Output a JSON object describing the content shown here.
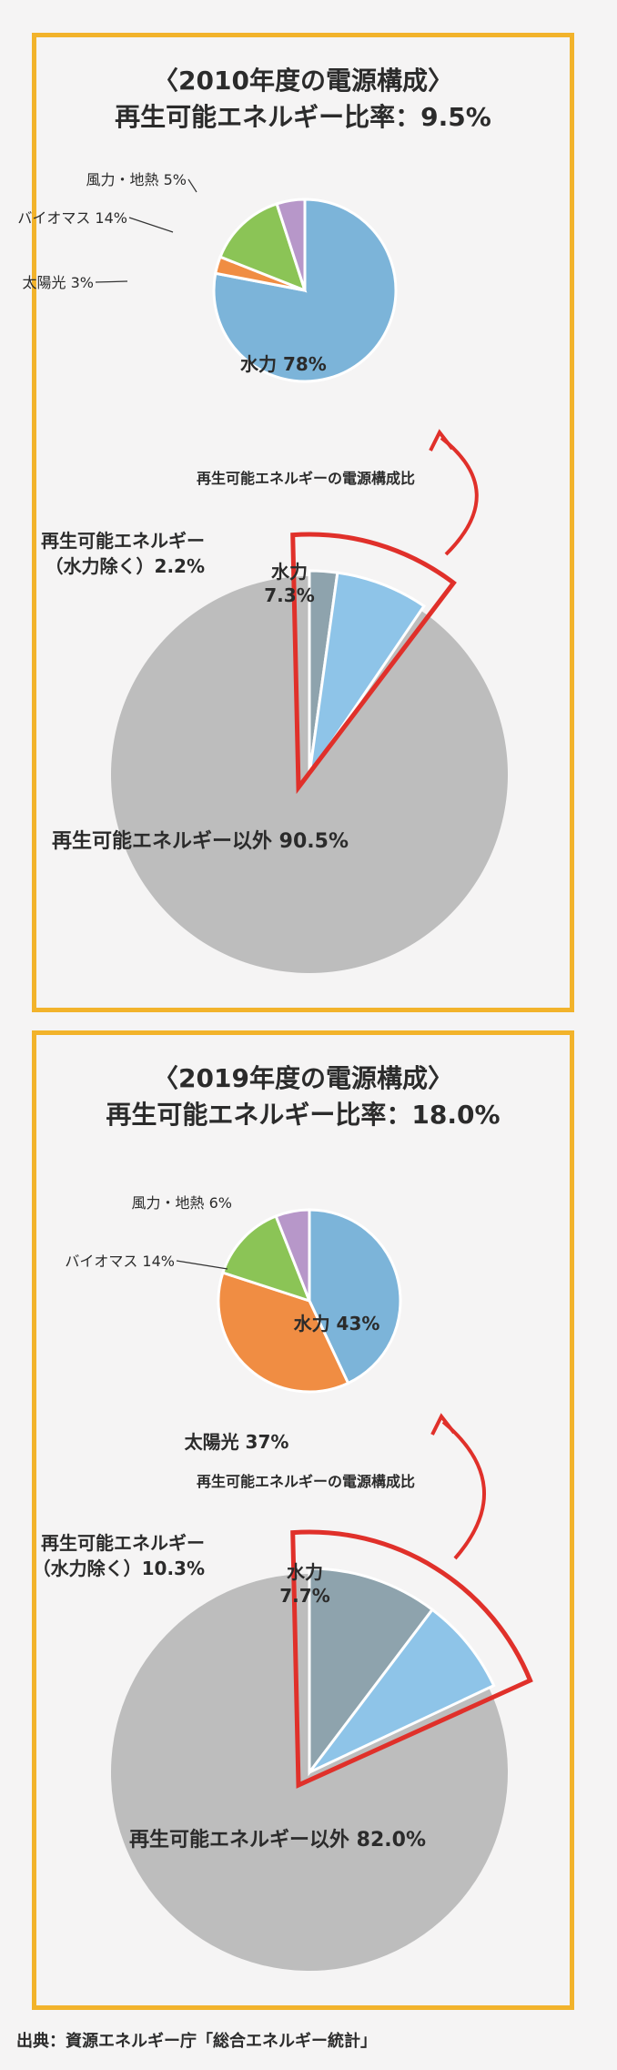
{
  "colors": {
    "hydro": "#7cb4d9",
    "solar": "#f08d43",
    "biomass": "#8bc456",
    "wind_geo": "#b797c9",
    "non_renewable": "#bdbdbd",
    "renewable_ex_hydro": "#8ea3ad",
    "hydro_share": "#8ec4e8",
    "highlight": "#e0302a",
    "frame": "#f2b32b"
  },
  "source": "出典：資源エネルギー庁「総合エネルギー統計」",
  "chart_data": [
    {
      "type": "pie",
      "year": "2010",
      "title_line1": "〈2010年度の電源構成〉",
      "title_line2": "再生可能エネルギー比率：9.5%",
      "sub_pie": {
        "caption": "再生可能エネルギーの電源構成比",
        "slices": [
          {
            "label": "水力 78%",
            "value": 78,
            "color": "hydro"
          },
          {
            "label": "太陽光 3%",
            "value": 3,
            "color": "solar"
          },
          {
            "label": "バイオマス 14%",
            "value": 14,
            "color": "biomass"
          },
          {
            "label": "風力・地熱 5%",
            "value": 5,
            "color": "wind_geo"
          }
        ]
      },
      "main_pie": {
        "slices": [
          {
            "label_line1": "再生可能エネルギー",
            "label_line2": "（水力除く）2.2%",
            "value": 2.2,
            "color": "renewable_ex_hydro"
          },
          {
            "label_line1": "水力",
            "label_line2": "7.3%",
            "value": 7.3,
            "color": "hydro_share"
          },
          {
            "label_line1": "再生可能エネルギー以外 90.5%",
            "label_line2": "",
            "value": 90.5,
            "color": "non_renewable"
          }
        ]
      }
    },
    {
      "type": "pie",
      "year": "2019",
      "title_line1": "〈2019年度の電源構成〉",
      "title_line2": "再生可能エネルギー比率：18.0%",
      "sub_pie": {
        "caption": "再生可能エネルギーの電源構成比",
        "slices": [
          {
            "label": "水力 43%",
            "value": 43,
            "color": "hydro"
          },
          {
            "label": "太陽光 37%",
            "value": 37,
            "color": "solar"
          },
          {
            "label": "バイオマス 14%",
            "value": 14,
            "color": "biomass"
          },
          {
            "label": "風力・地熱 6%",
            "value": 6,
            "color": "wind_geo"
          }
        ]
      },
      "main_pie": {
        "slices": [
          {
            "label_line1": "再生可能エネルギー",
            "label_line2": "（水力除く）10.3%",
            "value": 10.3,
            "color": "renewable_ex_hydro"
          },
          {
            "label_line1": "水力",
            "label_line2": "7.7%",
            "value": 7.7,
            "color": "hydro_share"
          },
          {
            "label_line1": "再生可能エネルギー以外 82.0%",
            "label_line2": "",
            "value": 82.0,
            "color": "non_renewable"
          }
        ]
      }
    }
  ]
}
